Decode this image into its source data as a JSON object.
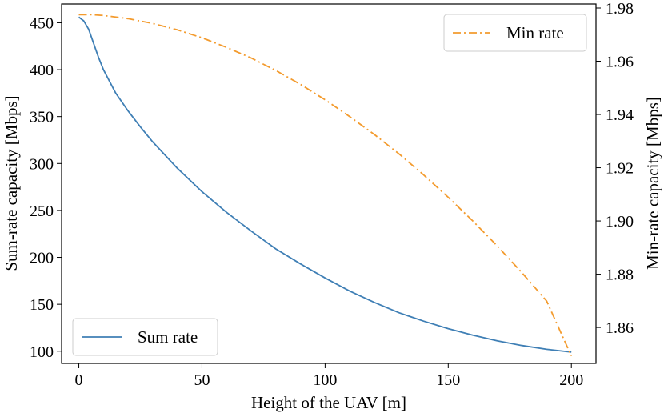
{
  "chart_data": {
    "type": "line",
    "title": "",
    "xlabel": "Height of the UAV [m]",
    "ylabel_left": "Sum-rate capacity [Mbps]",
    "ylabel_right": "Min-rate capacity [Mbps]",
    "xlim": [
      -7,
      210
    ],
    "ylim_left": [
      87,
      470
    ],
    "ylim_right": [
      1.8465,
      1.9815
    ],
    "x_ticks": [
      0,
      50,
      100,
      150,
      200
    ],
    "x_tick_labels": [
      "0",
      "50",
      "100",
      "150",
      "200"
    ],
    "y_left_ticks": [
      100,
      150,
      200,
      250,
      300,
      350,
      400,
      450
    ],
    "y_left_tick_labels": [
      "100",
      "150",
      "200",
      "250",
      "300",
      "350",
      "400",
      "450"
    ],
    "y_right_ticks": [
      1.86,
      1.88,
      1.9,
      1.92,
      1.94,
      1.96,
      1.98
    ],
    "y_right_tick_labels": [
      "1.86",
      "1.88",
      "1.90",
      "1.92",
      "1.94",
      "1.96",
      "1.98"
    ],
    "grid": false,
    "series": [
      {
        "name": "Sum rate",
        "axis": "left",
        "color": "#3f7fb5",
        "style": "solid",
        "legend_position": "bottom-left",
        "x": [
          0,
          2,
          4,
          6,
          8,
          10,
          15,
          20,
          25,
          30,
          40,
          50,
          60,
          70,
          80,
          90,
          100,
          110,
          120,
          130,
          140,
          150,
          160,
          170,
          180,
          190,
          200
        ],
        "y": [
          456,
          452,
          443,
          428,
          413,
          400,
          375,
          356,
          339,
          323,
          295,
          270,
          248,
          228,
          209,
          193,
          178,
          164,
          152,
          141,
          132,
          124,
          117,
          111,
          106,
          102,
          99
        ]
      },
      {
        "name": "Min rate",
        "axis": "right",
        "color": "#f39b2e",
        "style": "dashdot",
        "legend_position": "top-right",
        "x": [
          0,
          5,
          10,
          20,
          30,
          40,
          50,
          60,
          70,
          80,
          90,
          100,
          110,
          120,
          130,
          140,
          150,
          160,
          170,
          180,
          190,
          200
        ],
        "y": [
          1.9775,
          1.9775,
          1.9772,
          1.976,
          1.9742,
          1.9718,
          1.9688,
          1.9652,
          1.9612,
          1.9565,
          1.9513,
          1.9455,
          1.9392,
          1.9325,
          1.9252,
          1.9173,
          1.9089,
          1.9,
          1.8905,
          1.8805,
          1.8699,
          1.8493
        ]
      }
    ]
  }
}
